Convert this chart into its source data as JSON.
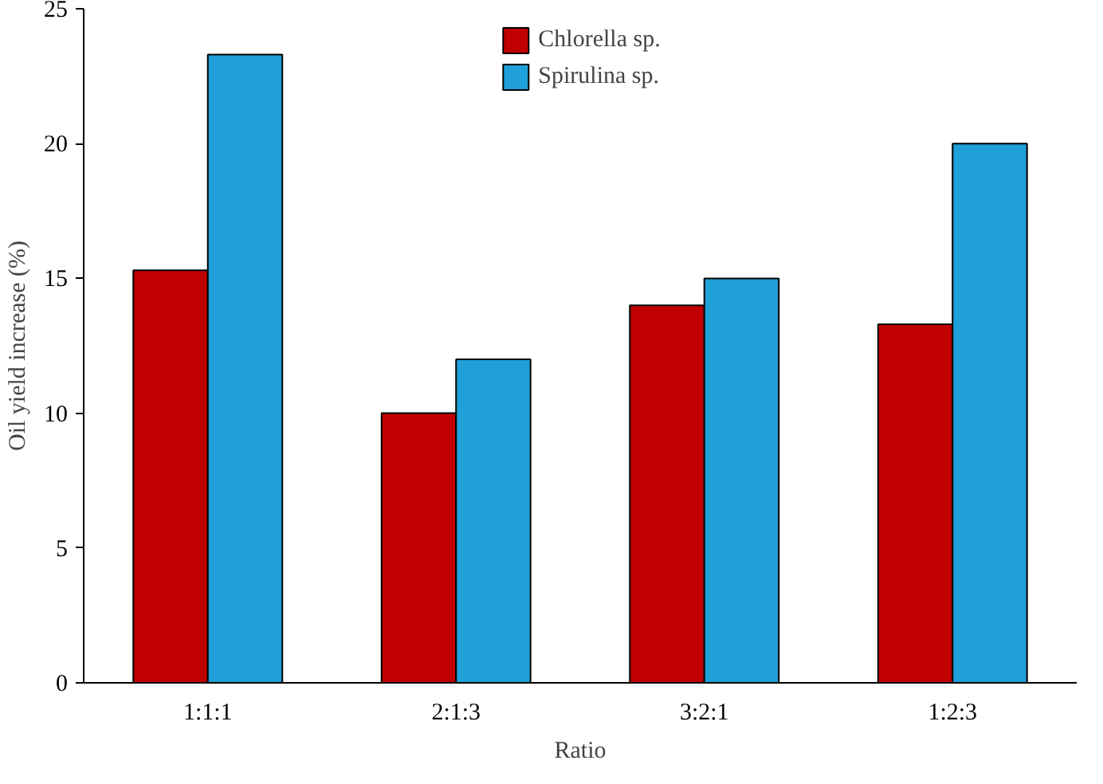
{
  "chart_data": {
    "type": "bar",
    "xlabel": "Ratio",
    "ylabel": "Oil yield increase (%)",
    "categories": [
      "1:1:1",
      "2:1:3",
      "3:2:1",
      "1:2:3"
    ],
    "series": [
      {
        "name": "Chlorella sp.",
        "color": "#c00000",
        "values": [
          15.3,
          10.0,
          14.0,
          13.3
        ]
      },
      {
        "name": "Spirulina sp.",
        "color": "#1fa0d8",
        "values": [
          23.3,
          12.0,
          15.0,
          20.0
        ]
      }
    ],
    "ylim": [
      0,
      25
    ],
    "yticks": [
      0,
      5,
      10,
      15,
      20,
      25
    ],
    "grid": false,
    "legend": "top"
  }
}
